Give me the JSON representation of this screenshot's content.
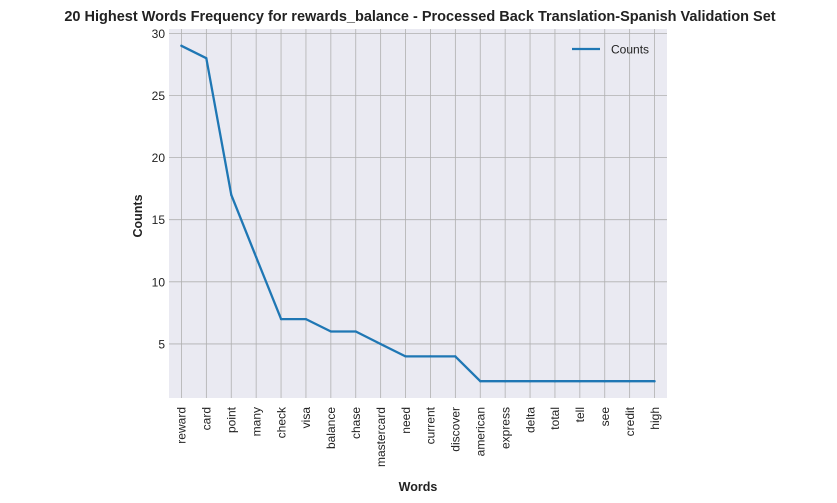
{
  "chart_data": {
    "type": "line",
    "title": "20 Highest Words Frequency for rewards_balance - Processed Back Translation-Spanish Validation Set",
    "xlabel": "Words",
    "ylabel": "Counts",
    "categories": [
      "reward",
      "card",
      "point",
      "many",
      "check",
      "visa",
      "balance",
      "chase",
      "mastercard",
      "need",
      "current",
      "discover",
      "american",
      "express",
      "delta",
      "total",
      "tell",
      "see",
      "credit",
      "high"
    ],
    "series": [
      {
        "name": "Counts",
        "values": [
          29,
          28,
          17,
          12,
          7,
          7,
          6,
          6,
          5,
          4,
          4,
          4,
          2,
          2,
          2,
          2,
          2,
          2,
          2,
          2
        ]
      }
    ],
    "ylim": [
      0.65,
      30.35
    ],
    "yticks": [
      5,
      10,
      15,
      20,
      25,
      30
    ],
    "grid": true,
    "legend_position": "top-right",
    "colors": {
      "line": "#1f77b4",
      "plot_background": "#eaeaf2",
      "grid": "#b0b0b0"
    }
  }
}
